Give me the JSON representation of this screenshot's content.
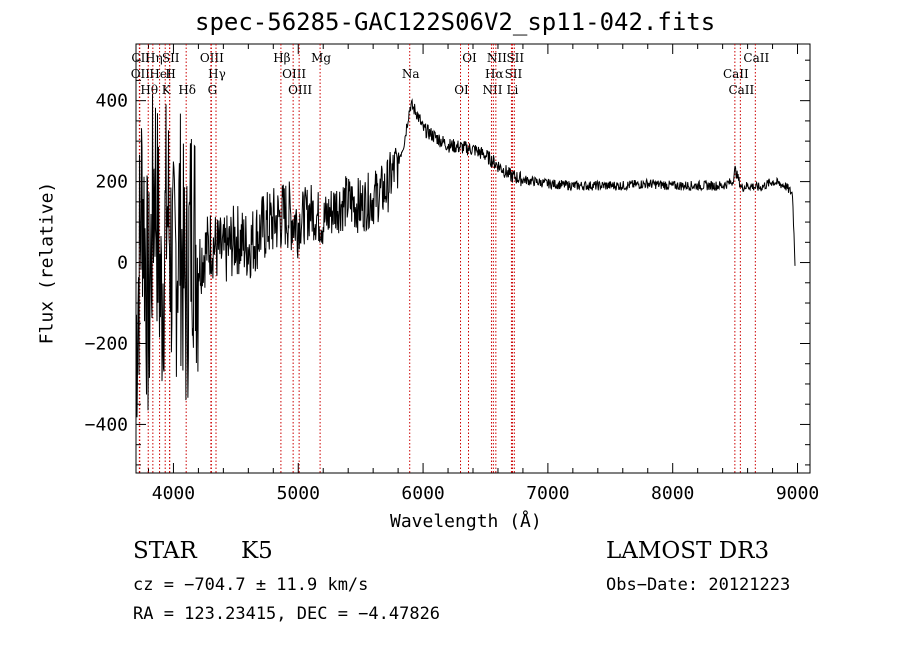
{
  "chart_data": {
    "type": "line",
    "title": "spec-56285-GAC122S06V2_sp11-042.fits",
    "xlabel": "Wavelength (Å)",
    "ylabel": "Flux (relative)",
    "xlim": [
      3700,
      9100
    ],
    "ylim": [
      -520,
      540
    ],
    "xticks": [
      4000,
      5000,
      6000,
      7000,
      8000,
      9000
    ],
    "xtick_labels": [
      "4000",
      "5000",
      "6000",
      "7000",
      "8000",
      "9000"
    ],
    "yticks": [
      -400,
      -200,
      0,
      200,
      400
    ],
    "ytick_labels": [
      "−400",
      "−200",
      "0",
      "200",
      "400"
    ],
    "series": [
      {
        "name": "flux",
        "x": [
          3700,
          3750,
          3800,
          3850,
          3900,
          3950,
          4000,
          4050,
          4100,
          4150,
          4200,
          4300,
          4400,
          4500,
          4600,
          4700,
          4800,
          4900,
          5000,
          5100,
          5200,
          5300,
          5400,
          5500,
          5600,
          5700,
          5800,
          5850,
          5880,
          5900,
          5950,
          6000,
          6100,
          6200,
          6300,
          6400,
          6500,
          6600,
          6700,
          6800,
          7000,
          7200,
          7400,
          7600,
          7800,
          8000,
          8200,
          8400,
          8480,
          8500,
          8550,
          8600,
          8700,
          8800,
          8900,
          8960,
          8980
        ],
        "y": [
          -200,
          200,
          -150,
          250,
          -100,
          150,
          -50,
          100,
          -100,
          120,
          0,
          50,
          20,
          60,
          40,
          80,
          100,
          120,
          100,
          130,
          100,
          140,
          150,
          140,
          160,
          180,
          250,
          300,
          360,
          390,
          370,
          330,
          310,
          290,
          285,
          280,
          265,
          240,
          215,
          205,
          195,
          190,
          190,
          190,
          195,
          190,
          190,
          190,
          200,
          230,
          185,
          190,
          185,
          200,
          190,
          170,
          0
        ]
      }
    ],
    "lines": [
      {
        "name": "CII",
        "x": 3730
      },
      {
        "name": "OII",
        "x": 3727
      },
      {
        "name": "Hθ",
        "x": 3798
      },
      {
        "name": "Hη",
        "x": 3835
      },
      {
        "name": "HeI",
        "x": 3889
      },
      {
        "name": "K",
        "x": 3934
      },
      {
        "name": "SII",
        "x": 3970
      },
      {
        "name": "H",
        "x": 3969
      },
      {
        "name": "Hδ",
        "x": 4102
      },
      {
        "name": "OIII",
        "x": 4300
      },
      {
        "name": "Hγ",
        "x": 4341
      },
      {
        "name": "G",
        "x": 4304
      },
      {
        "name": "Hβ",
        "x": 4861
      },
      {
        "name": "OIII",
        "x": 4959
      },
      {
        "name": "OIII",
        "x": 5007
      },
      {
        "name": "Mg",
        "x": 5175
      },
      {
        "name": "Na",
        "x": 5893
      },
      {
        "name": "OI",
        "x": 6300
      },
      {
        "name": "OI",
        "x": 6364
      },
      {
        "name": "Hα",
        "x": 6563
      },
      {
        "name": "NII",
        "x": 6548
      },
      {
        "name": "NII",
        "x": 6583
      },
      {
        "name": "SII",
        "x": 6716
      },
      {
        "name": "Li",
        "x": 6708
      },
      {
        "name": "SII",
        "x": 6731
      },
      {
        "name": "CaII",
        "x": 8498
      },
      {
        "name": "CaII",
        "x": 8542
      },
      {
        "name": "CaII",
        "x": 8662
      }
    ]
  },
  "info": {
    "object_class": "STAR",
    "subclass": "K5",
    "survey": "LAMOST DR3",
    "cz": "cz = −704.7 ± 11.9 km/s",
    "obs_date": "Obs−Date: 20121223",
    "coords": "RA = 123.23415, DEC =  −4.47826"
  },
  "colors": {
    "line": "#000000",
    "marker": "#cc0000",
    "background": "#ffffff"
  }
}
